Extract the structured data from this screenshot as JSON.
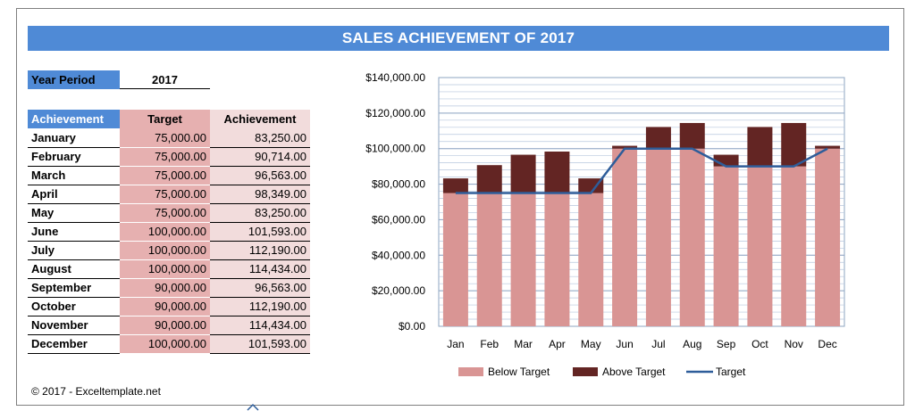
{
  "title": "SALES ACHIEVEMENT OF 2017",
  "year_period": {
    "label": "Year Period",
    "value": "2017"
  },
  "table": {
    "headers": [
      "Achievement",
      "Target",
      "Achievement"
    ],
    "rows": [
      {
        "month": "January",
        "target": "75,000.00",
        "achievement": "83,250.00"
      },
      {
        "month": "February",
        "target": "75,000.00",
        "achievement": "90,714.00"
      },
      {
        "month": "March",
        "target": "75,000.00",
        "achievement": "96,563.00"
      },
      {
        "month": "April",
        "target": "75,000.00",
        "achievement": "98,349.00"
      },
      {
        "month": "May",
        "target": "75,000.00",
        "achievement": "83,250.00"
      },
      {
        "month": "June",
        "target": "100,000.00",
        "achievement": "101,593.00"
      },
      {
        "month": "July",
        "target": "100,000.00",
        "achievement": "112,190.00"
      },
      {
        "month": "August",
        "target": "100,000.00",
        "achievement": "114,434.00"
      },
      {
        "month": "September",
        "target": "90,000.00",
        "achievement": "96,563.00"
      },
      {
        "month": "October",
        "target": "90,000.00",
        "achievement": "112,190.00"
      },
      {
        "month": "November",
        "target": "90,000.00",
        "achievement": "114,434.00"
      },
      {
        "month": "December",
        "target": "100,000.00",
        "achievement": "101,593.00"
      }
    ]
  },
  "copyright": "© 2017 - Exceltemplate.net",
  "colors": {
    "banner": "#4f8ad6",
    "below": "#d99594",
    "above": "#632523",
    "target": "#2e5d9a",
    "grid": "#b7c7dd"
  },
  "chart_data": {
    "type": "bar",
    "stacked": true,
    "categories": [
      "Jan",
      "Feb",
      "Mar",
      "Apr",
      "May",
      "Jun",
      "Jul",
      "Aug",
      "Sep",
      "Oct",
      "Nov",
      "Dec"
    ],
    "series": [
      {
        "name": "Below Target",
        "values": [
          75000,
          75000,
          75000,
          75000,
          75000,
          100000,
          100000,
          100000,
          90000,
          90000,
          90000,
          100000
        ]
      },
      {
        "name": "Above Target",
        "values": [
          8250,
          15714,
          21563,
          23349,
          8250,
          1593,
          12190,
          14434,
          6563,
          22190,
          24434,
          1593
        ]
      },
      {
        "name": "Target",
        "type": "line",
        "values": [
          75000,
          75000,
          75000,
          75000,
          75000,
          100000,
          100000,
          100000,
          90000,
          90000,
          90000,
          100000
        ]
      }
    ],
    "ylim": [
      0,
      140000
    ],
    "y_ticks": [
      "$0.00",
      "$20,000.00",
      "$40,000.00",
      "$60,000.00",
      "$80,000.00",
      "$100,000.00",
      "$120,000.00",
      "$140,000.00"
    ],
    "y_step": 20000,
    "minor_step": 4000,
    "grid": true,
    "legend": "bottom"
  }
}
